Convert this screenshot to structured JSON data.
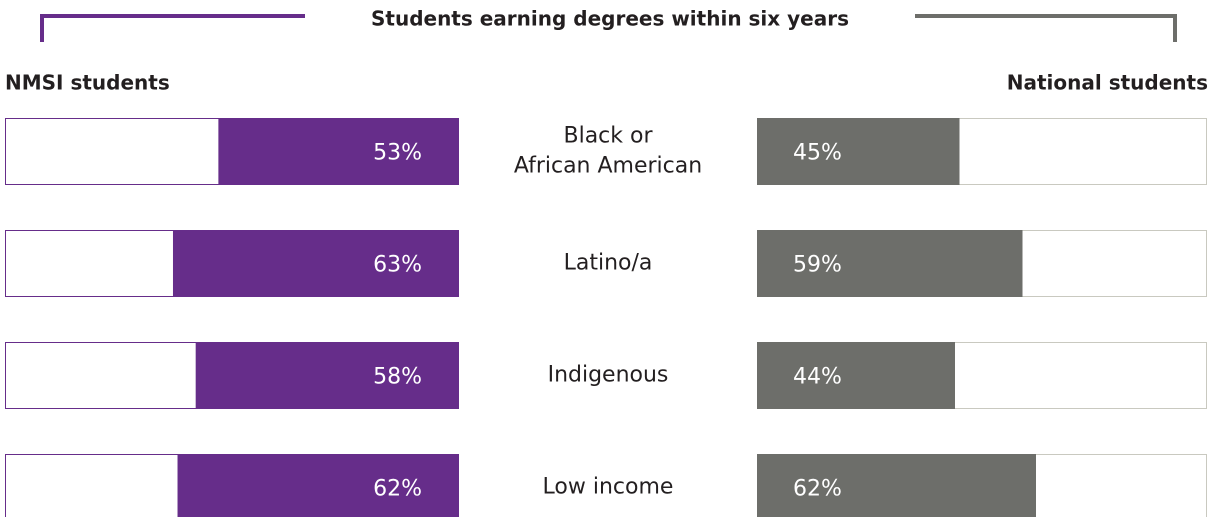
{
  "chart_data": {
    "type": "butterfly-bar",
    "title": "Students earning degrees within six years",
    "categories": [
      "Black or\nAfrican American",
      "Latino/a",
      "Indigenous",
      "Low income"
    ],
    "series": [
      {
        "name": "NMSI students",
        "color": "#662d8a",
        "values": [
          53,
          63,
          58,
          62
        ],
        "value_labels": [
          "53%",
          "63%",
          "58%",
          "62%"
        ]
      },
      {
        "name": "National students",
        "color": "#6d6e6a",
        "values": [
          45,
          59,
          44,
          62
        ],
        "value_labels": [
          "45%",
          "59%",
          "44%",
          "62%"
        ]
      }
    ],
    "xlim": [
      0,
      100
    ]
  }
}
